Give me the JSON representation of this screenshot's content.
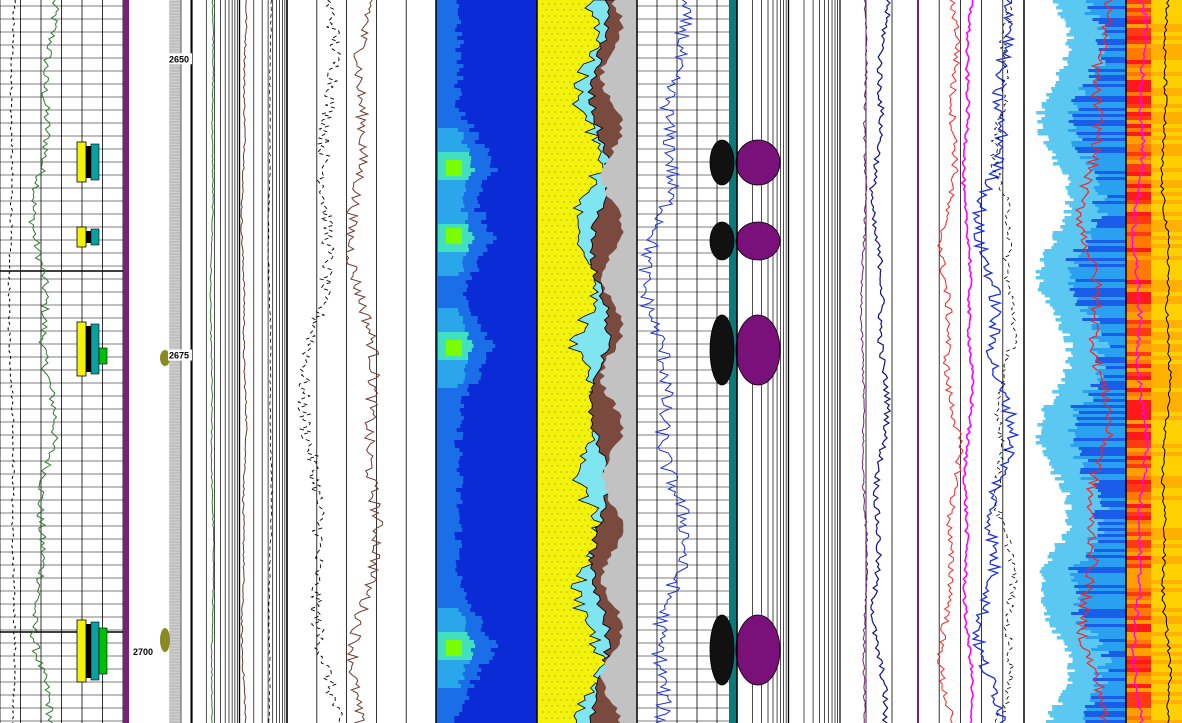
{
  "depth_labels": [
    {
      "text": "2650",
      "depth": 2650
    },
    {
      "text": "2675",
      "depth": 2675
    },
    {
      "text": "2700",
      "depth": 2700
    }
  ],
  "chart_data": {
    "type": "well_log",
    "depth_range": [
      2645,
      2706
    ],
    "depth_labels": [
      "2650",
      "2675",
      "2700"
    ],
    "tracks": [
      {
        "name": "track-1",
        "curves": [
          "green",
          "black-dashed"
        ],
        "fill_patches": [
          "yellow",
          "teal",
          "black",
          "green"
        ]
      },
      {
        "name": "depth-track"
      },
      {
        "name": "track-2",
        "curves": [
          "green",
          "brown",
          "black-dashed"
        ]
      },
      {
        "name": "track-3",
        "curves": [
          "black-dashed",
          "brown"
        ]
      },
      {
        "name": "image-track-blue",
        "colormap": [
          "#0b2bd6",
          "#1a6fe8",
          "#2aa6ea",
          "#40e0c0",
          "#7cfc00"
        ]
      },
      {
        "name": "lithology-track",
        "fills": [
          "yellow",
          "cyan",
          "brown",
          "gray"
        ]
      },
      {
        "name": "track-4",
        "curves": [
          "blue"
        ]
      },
      {
        "name": "track-5",
        "fills": [
          "black",
          "purple",
          "teal"
        ]
      },
      {
        "name": "track-6",
        "curves": [
          "purple",
          "navy"
        ]
      },
      {
        "name": "track-7",
        "curves": [
          "red",
          "magenta",
          "blue",
          "black-dashed"
        ]
      },
      {
        "name": "image-track-cyan",
        "curves": [
          "red"
        ]
      },
      {
        "name": "image-track-heat",
        "colormap": [
          "#ff1a1a",
          "#ff7a00",
          "#ffb000",
          "#ffd400"
        ],
        "curves": [
          "magenta",
          "black"
        ]
      }
    ]
  },
  "colors": {
    "purple": "#7a1f7a",
    "blue": "#1a2fe0",
    "brown": "#6b3a2e",
    "yellow": "#f2f20a",
    "cyan": "#7fe5f0",
    "green": "#2d7a2d",
    "magenta": "#ff00ff",
    "red": "#ff2020"
  }
}
